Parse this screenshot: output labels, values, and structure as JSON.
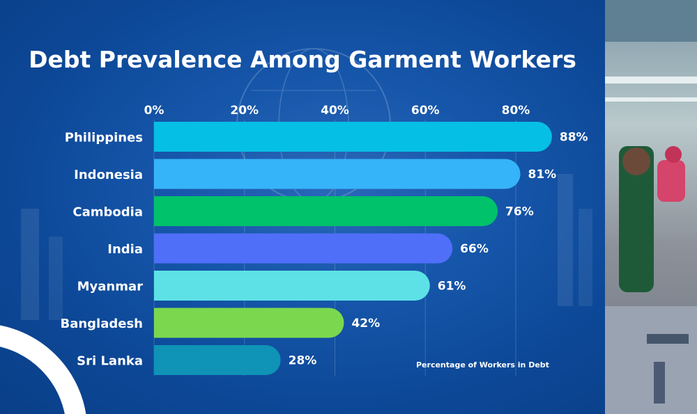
{
  "colors": {
    "background": "#0c4796",
    "text": "#ffffff",
    "bars": [
      "#06bfe4",
      "#36b4f9",
      "#00c26a",
      "#4f6ff8",
      "#5de1e6",
      "#7bd84e",
      "#0f93b6"
    ]
  },
  "chart_data": {
    "type": "bar",
    "orientation": "horizontal",
    "title": "Debt Prevalence Among Garment Workers",
    "xlabel": "Percentage of Workers in Debt",
    "ylabel": "",
    "xlim": [
      0,
      80
    ],
    "ticks": [
      0,
      20,
      40,
      60,
      80
    ],
    "tick_labels": [
      "0%",
      "20%",
      "40%",
      "60%",
      "80%"
    ],
    "categories": [
      "Philippines",
      "Indonesia",
      "Cambodia",
      "India",
      "Myanmar",
      "Bangladesh",
      "Sri Lanka"
    ],
    "values": [
      88,
      81,
      76,
      66,
      61,
      42,
      28
    ],
    "value_labels": [
      "88%",
      "81%",
      "76%",
      "66%",
      "61%",
      "42%",
      "28%"
    ],
    "grid": true
  },
  "photo": {
    "description_icon": "garment-factory-photo"
  }
}
